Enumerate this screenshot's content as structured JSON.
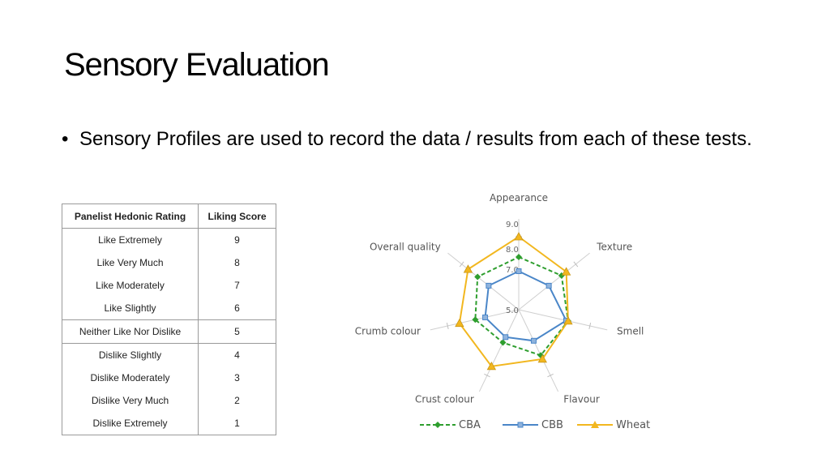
{
  "slide": {
    "title": "Sensory Evaluation",
    "bullets": [
      "Sensory Profiles are used to record the data / results from each of these tests."
    ]
  },
  "table": {
    "headers": [
      "Panelist Hedonic Rating",
      "Liking Score"
    ],
    "rows": [
      [
        "Like Extremely",
        "9"
      ],
      [
        "Like Very Much",
        "8"
      ],
      [
        "Like Moderately",
        "7"
      ],
      [
        "Like Slightly",
        "6"
      ],
      [
        "Neither Like Nor Dislike",
        "5"
      ],
      [
        "Dislike Slightly",
        "4"
      ],
      [
        "Dislike Moderately",
        "3"
      ],
      [
        "Dislike Very Much",
        "2"
      ],
      [
        "Dislike Extremely",
        "1"
      ]
    ]
  },
  "chart_data": {
    "type": "radar",
    "title": "",
    "categories": [
      "Appearance",
      "Texture",
      "Smell",
      "Flavour",
      "Crust colour",
      "Crumb colour",
      "Overall quality"
    ],
    "scale_min": 5.0,
    "scale_max": 9.0,
    "tick_labels": [
      "5.0",
      "7.0",
      "8.0",
      "9.0"
    ],
    "series": [
      {
        "name": "CBA",
        "color": "#2e9e2e",
        "marker": "diamond",
        "line": "dashed",
        "values": [
          7.6,
          7.7,
          7.5,
          7.5,
          6.8,
          7.2,
          7.6
        ]
      },
      {
        "name": "CBB",
        "color": "#4a86c8",
        "marker": "square",
        "line": "solid",
        "values": [
          6.9,
          6.9,
          7.4,
          6.7,
          6.5,
          6.7,
          6.9
        ]
      },
      {
        "name": "Wheat",
        "color": "#f2b71f",
        "marker": "triangle",
        "line": "solid",
        "values": [
          8.6,
          8.0,
          7.5,
          7.7,
          8.1,
          8.0,
          8.2
        ]
      }
    ],
    "legend_position": "bottom"
  }
}
